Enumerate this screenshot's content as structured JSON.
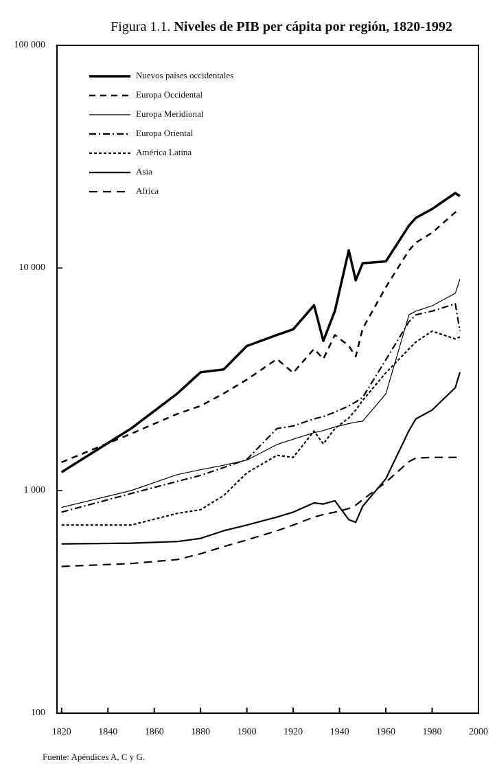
{
  "chart_data": {
    "type": "line",
    "title_prefix": "Figura 1.1.",
    "title": "Niveles de PIB per cápita por región, 1820-1992",
    "source": "Fuente: Apéndices A, C y G.",
    "log_y": true,
    "x": [
      1820,
      1850,
      1870,
      1880,
      1890,
      1900,
      1913,
      1920,
      1929,
      1933,
      1938,
      1944,
      1947,
      1950,
      1960,
      1970,
      1973,
      1980,
      1990,
      1992
    ],
    "xlim": [
      1818,
      2000
    ],
    "xticks": [
      1820,
      1840,
      1860,
      1880,
      1900,
      1920,
      1940,
      1960,
      1980,
      2000
    ],
    "ylim": [
      100,
      100000
    ],
    "yticks": [
      {
        "value": 100000,
        "label": "100 000"
      },
      {
        "value": 10000,
        "label": "10 000"
      },
      {
        "value": 1000,
        "label": "1 000"
      },
      100
    ],
    "legend": "upper left",
    "series": [
      {
        "name": "Nuevos países occidentales",
        "color": "#000",
        "width": 3.5,
        "dash": "none",
        "values": [
          1210,
          1900,
          2730,
          3400,
          3500,
          4460,
          5000,
          5300,
          6800,
          4700,
          6400,
          12000,
          8800,
          10500,
          10700,
          15500,
          16800,
          18400,
          21700,
          21000
        ]
      },
      {
        "name": "Europa Occidental",
        "color": "#000",
        "width": 2.5,
        "dash": "9 7",
        "values": [
          1340,
          1800,
          2210,
          2400,
          2730,
          3150,
          3900,
          3380,
          4330,
          3900,
          5000,
          4470,
          4000,
          5340,
          8200,
          12000,
          13000,
          14400,
          17800,
          18200
        ]
      },
      {
        "name": "Europa Meridional",
        "color": "#000",
        "width": 1.2,
        "dash": "none",
        "values": [
          840,
          1000,
          1180,
          1240,
          1300,
          1370,
          1610,
          1700,
          1820,
          1860,
          1930,
          2000,
          2030,
          2050,
          2720,
          6160,
          6400,
          6760,
          7700,
          8900
        ]
      },
      {
        "name": "Europa Oriental",
        "color": "#000",
        "width": 2.2,
        "dash": "10 4 2 4",
        "values": [
          800,
          970,
          1100,
          1170,
          1270,
          1380,
          1900,
          1950,
          2100,
          2150,
          2250,
          2400,
          2500,
          2620,
          3870,
          5740,
          6160,
          6400,
          6900,
          5200
        ]
      },
      {
        "name": "América Latina",
        "color": "#000",
        "width": 2.2,
        "dash": "4 3",
        "values": [
          700,
          700,
          790,
          820,
          950,
          1200,
          1440,
          1410,
          1850,
          1620,
          1900,
          2120,
          2300,
          2540,
          3380,
          4330,
          4650,
          5200,
          4800,
          4900
        ]
      },
      {
        "name": "Asia",
        "color": "#000",
        "width": 2.2,
        "dash": "none",
        "values": [
          576,
          580,
          590,
          610,
          660,
          700,
          760,
          800,
          880,
          870,
          900,
          740,
          720,
          850,
          1130,
          1860,
          2100,
          2300,
          2900,
          3400
        ]
      },
      {
        "name": "Africa",
        "color": "#000",
        "width": 2.2,
        "dash": "12 8",
        "values": [
          456,
          470,
          490,
          520,
          560,
          600,
          660,
          700,
          760,
          780,
          800,
          830,
          860,
          910,
          1090,
          1350,
          1400,
          1410,
          1410,
          1410
        ]
      }
    ]
  }
}
